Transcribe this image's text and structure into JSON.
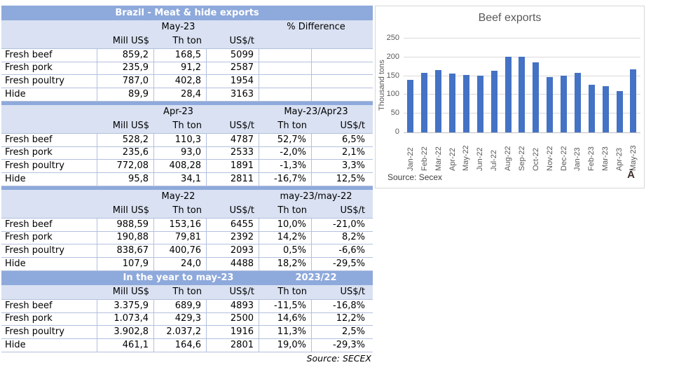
{
  "table": {
    "title": "Brazil - Meat & hide exports",
    "source": "Source: SECEX",
    "sections": [
      {
        "group1": "May-23",
        "group2": "% Difference",
        "dark": false,
        "strip": false,
        "col_headers": [
          "",
          "Mill US$",
          "Th ton",
          "US$/t",
          "",
          ""
        ],
        "rows": [
          [
            "Fresh beef",
            "859,2",
            "168,5",
            "5099",
            "",
            ""
          ],
          [
            "Fresh pork",
            "235,9",
            "91,2",
            "2587",
            "",
            ""
          ],
          [
            "Fresh poultry",
            "787,0",
            "402,8",
            "1954",
            "",
            ""
          ],
          [
            "Hide",
            "89,9",
            "28,4",
            "3163",
            "",
            ""
          ]
        ]
      },
      {
        "group1": "Apr-23",
        "group2": "May-23/Apr23",
        "dark": false,
        "strip": true,
        "col_headers": [
          "",
          "Mill US$",
          "Th ton",
          "US$/t",
          "Th ton",
          "US$/t"
        ],
        "rows": [
          [
            "Fresh beef",
            "528,2",
            "110,3",
            "4787",
            "52,7%",
            "6,5%"
          ],
          [
            "Fresh pork",
            "235,6",
            "93,0",
            "2533",
            "-2,0%",
            "2,1%"
          ],
          [
            "Fresh poultry",
            "772,08",
            "408,28",
            "1891",
            "-1,3%",
            "3,3%"
          ],
          [
            "Hide",
            "95,8",
            "34,1",
            "2811",
            "-16,7%",
            "12,5%"
          ]
        ]
      },
      {
        "group1": "May-22",
        "group2": "may-23/may-22",
        "dark": false,
        "strip": true,
        "col_headers": [
          "",
          "Mill US$",
          "Th ton",
          "US$/t",
          "Th ton",
          "US$/t"
        ],
        "rows": [
          [
            "Fresh beef",
            "988,59",
            "153,16",
            "6455",
            "10,0%",
            "-21,0%"
          ],
          [
            "Fresh pork",
            "190,88",
            "79,81",
            "2392",
            "14,2%",
            "8,2%"
          ],
          [
            "Fresh poultry",
            "838,67",
            "400,76",
            "2093",
            "0,5%",
            "-6,6%"
          ],
          [
            "Hide",
            "107,9",
            "24,0",
            "4488",
            "18,2%",
            "-29,5%"
          ]
        ]
      },
      {
        "group1": "In the year to may-23",
        "group2": "2023/22",
        "dark": true,
        "strip": false,
        "col_headers": [
          "",
          "Mill US$",
          "Th ton",
          "US$/t",
          "Th ton",
          "US$/t"
        ],
        "rows": [
          [
            "Fresh beef",
            "3.375,9",
            "689,9",
            "4893",
            "-11,5%",
            "-16,8%"
          ],
          [
            "Fresh pork",
            "1.073,4",
            "429,3",
            "2500",
            "14,6%",
            "12,2%"
          ],
          [
            "Fresh poultry",
            "3.902,8",
            "2.037,2",
            "1916",
            "11,3%",
            "2,5%"
          ],
          [
            "Hide",
            "461,1",
            "164,6",
            "2801",
            "19,0%",
            "-29,3%"
          ]
        ]
      }
    ]
  },
  "chart_data": {
    "type": "bar",
    "title": "Beef exports",
    "xlabel": "",
    "ylabel": "Thousand tons",
    "source": "Source: Secex",
    "corner_glyph": "Ā",
    "legend": "none",
    "grid": "horizontal",
    "ylim": [
      0,
      250
    ],
    "yticks": [
      0,
      50,
      100,
      150,
      200,
      250
    ],
    "categories": [
      "Jan-22",
      "Feb-22",
      "Mar-22",
      "Apr-22",
      "May-22",
      "Jun-22",
      "Jul-22",
      "Aug-22",
      "Sep-22",
      "Oct-22",
      "Nov-22",
      "Dec-22",
      "Jan-23",
      "Feb-23",
      "Mar-23",
      "Apr-23",
      "May-23"
    ],
    "values": [
      140,
      159,
      166,
      156,
      153,
      151,
      165,
      202,
      202,
      187,
      148,
      152,
      159,
      127,
      124,
      110,
      168
    ]
  },
  "colors": {
    "header_dark": "#8ea9db",
    "header_light": "#d9e1f2",
    "table_border": "#b3c0de",
    "bar_fill": "#4472c4",
    "chart_text": "#595959",
    "gridline": "#d9d9d9"
  }
}
